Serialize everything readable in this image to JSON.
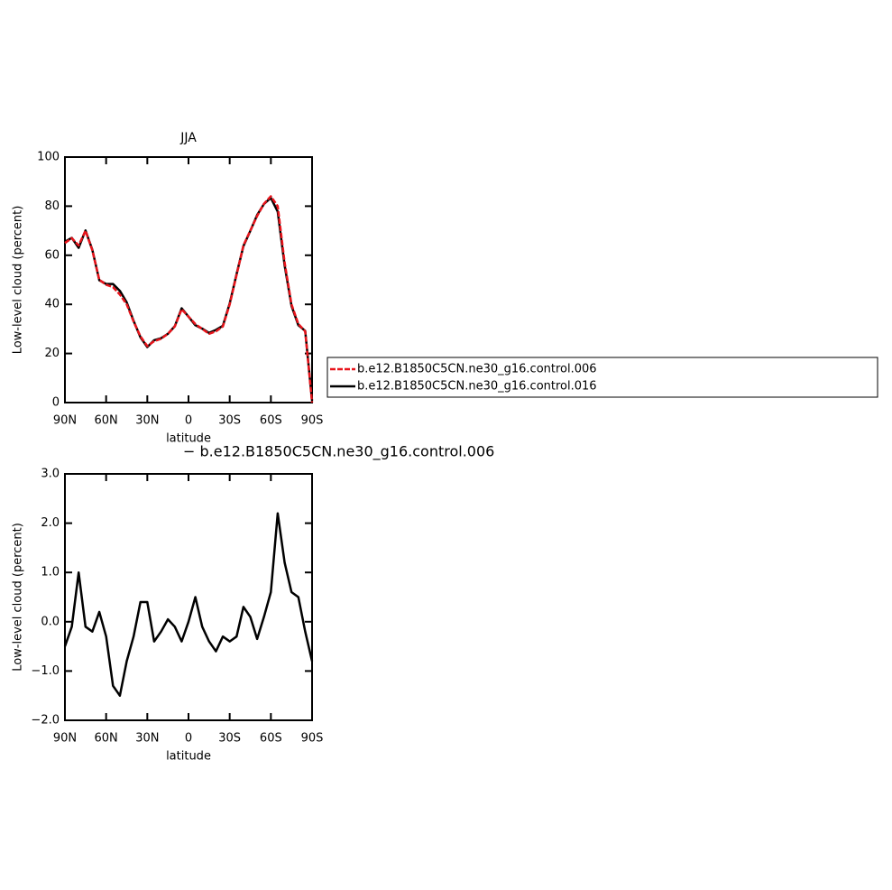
{
  "chart_data": [
    {
      "type": "line",
      "title": "JJA",
      "x_label": "latitude",
      "y_label": "Low-level cloud (percent)",
      "x": [
        90,
        85,
        80,
        75,
        70,
        65,
        60,
        55,
        50,
        45,
        40,
        35,
        30,
        25,
        20,
        15,
        10,
        5,
        0,
        -5,
        -10,
        -15,
        -20,
        -25,
        -30,
        -35,
        -40,
        -45,
        -50,
        -55,
        -60,
        -65,
        -70,
        -75,
        -80,
        -85,
        -90
      ],
      "series": [
        {
          "name": "b.e12.B1850C5CN.ne30_g16.control.006",
          "color": "#e8141b",
          "dashed": true,
          "values": [
            65,
            67,
            64,
            70,
            62,
            50,
            48,
            47,
            44,
            40,
            33,
            27,
            23,
            25,
            26,
            28,
            31,
            38,
            35,
            32,
            30,
            28,
            29,
            31,
            40,
            52,
            64,
            70,
            76,
            81,
            84,
            80,
            57,
            40,
            32,
            29,
            0
          ]
        },
        {
          "name": "b.e12.B1850C5CN.ne30_g16.control.016",
          "color": "#000000",
          "dashed": false,
          "values": [
            65.5,
            67.1,
            63,
            70.1,
            62.2,
            49.8,
            48.3,
            48.3,
            45.5,
            40.8,
            33.3,
            26.6,
            22.6,
            25.4,
            26.2,
            28,
            31.1,
            38.4,
            35,
            31.5,
            30.1,
            28.4,
            29.6,
            31.3,
            40.4,
            52.3,
            63.7,
            69.9,
            76.4,
            80.9,
            83.4,
            77.8,
            55.8,
            39.4,
            31.5,
            29.2,
            0.8
          ]
        }
      ],
      "xlim": [
        90,
        -90
      ],
      "xticks": [
        {
          "value": 90,
          "label": "90N"
        },
        {
          "value": 60,
          "label": "60N"
        },
        {
          "value": 30,
          "label": "30N"
        },
        0,
        {
          "value": -30,
          "label": "30S"
        },
        {
          "value": -60,
          "label": "60S"
        },
        {
          "value": -90,
          "label": "90S"
        }
      ],
      "ylim": [
        0,
        100
      ],
      "yticks": [
        0,
        20,
        40,
        60,
        80,
        100
      ]
    },
    {
      "type": "line",
      "title": "− b.e12.B1850C5CN.ne30_g16.control.006",
      "x_label": "latitude",
      "y_label": "Low-level cloud (percent)",
      "x": [
        90,
        85,
        80,
        75,
        70,
        65,
        60,
        55,
        50,
        45,
        40,
        35,
        30,
        25,
        20,
        15,
        10,
        5,
        0,
        -5,
        -10,
        -15,
        -20,
        -25,
        -30,
        -35,
        -40,
        -45,
        -50,
        -55,
        -60,
        -65,
        -70,
        -75,
        -80,
        -85,
        -90
      ],
      "values": [
        -0.5,
        -0.1,
        1.0,
        -0.1,
        -0.2,
        0.2,
        -0.3,
        -1.3,
        -1.5,
        -0.8,
        -0.3,
        0.4,
        0.4,
        -0.4,
        -0.2,
        0.05,
        -0.1,
        -0.4,
        0.0,
        0.5,
        -0.1,
        -0.4,
        -0.6,
        -0.3,
        -0.4,
        -0.3,
        0.3,
        0.1,
        -0.35,
        0.1,
        0.6,
        2.2,
        1.2,
        0.6,
        0.5,
        -0.2,
        -0.8
      ],
      "color": "#000000",
      "xlim": [
        90,
        -90
      ],
      "xticks": [
        {
          "value": 90,
          "label": "90N"
        },
        {
          "value": 60,
          "label": "60N"
        },
        {
          "value": 30,
          "label": "30N"
        },
        0,
        {
          "value": -30,
          "label": "30S"
        },
        {
          "value": -60,
          "label": "60S"
        },
        {
          "value": -90,
          "label": "90S"
        }
      ],
      "ylim": [
        -2,
        3
      ],
      "yticks": [
        {
          "value": -2,
          "label": "−2.0"
        },
        {
          "value": -1,
          "label": "−1.0"
        },
        {
          "value": 0,
          "label": "0.0"
        },
        {
          "value": 1,
          "label": "1.0"
        },
        {
          "value": 2,
          "label": "2.0"
        },
        {
          "value": 3,
          "label": "3.0"
        }
      ]
    }
  ]
}
